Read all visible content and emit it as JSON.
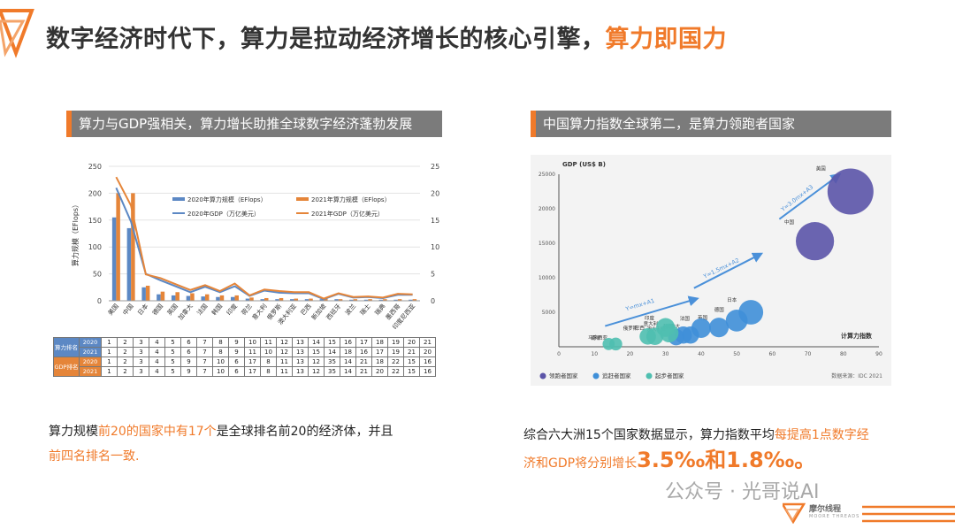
{
  "title": {
    "main": "数字经济时代下，算力是拉动经济增长的核心引擎，",
    "highlight": "算力即国力"
  },
  "left": {
    "heading": "算力与GDP强相关，算力增长助推全球数字经济蓬勃发展",
    "table": {
      "groups": [
        {
          "label": "算力排名",
          "rows": [
            {
              "year": "2020",
              "values": [
                "1",
                "2",
                "3",
                "4",
                "5",
                "6",
                "7",
                "8",
                "9",
                "10",
                "11",
                "12",
                "13",
                "14",
                "15",
                "16",
                "17",
                "18",
                "19",
                "20",
                "21"
              ]
            },
            {
              "year": "2021",
              "values": [
                "1",
                "2",
                "3",
                "4",
                "5",
                "6",
                "7",
                "8",
                "9",
                "11",
                "10",
                "12",
                "13",
                "15",
                "14",
                "18",
                "16",
                "17",
                "19",
                "21",
                "20"
              ]
            }
          ]
        },
        {
          "label": "GDP排名",
          "rows": [
            {
              "year": "2020",
              "values": [
                "1",
                "2",
                "3",
                "4",
                "5",
                "9",
                "7",
                "10",
                "6",
                "17",
                "8",
                "11",
                "13",
                "12",
                "35",
                "14",
                "21",
                "18",
                "22",
                "15",
                "16"
              ]
            },
            {
              "year": "2021",
              "values": [
                "1",
                "2",
                "3",
                "4",
                "5",
                "9",
                "7",
                "10",
                "6",
                "17",
                "8",
                "11",
                "13",
                "12",
                "35",
                "14",
                "21",
                "20",
                "22",
                "15",
                "16"
              ]
            }
          ]
        }
      ]
    },
    "text": {
      "t1": "算力规模",
      "t2": "前20的国家中有17个",
      "t3": "是全球排名前20的经济体，并且",
      "t4": "前四名排名一致."
    }
  },
  "right": {
    "heading": "中国算力指数全球第二，是算力领跑者国家",
    "text": {
      "t1": "综合六大洲15个国家数据显示，算力指数平均",
      "t2": "每提高1点数字经",
      "t3": "济和GDP将分别增长",
      "t4": "3.5‰和1.8‰。"
    }
  },
  "chart_data": [
    {
      "type": "bar",
      "categories": [
        "美国",
        "中国",
        "日本",
        "德国",
        "英国",
        "加拿大",
        "法国",
        "韩国",
        "印度",
        "荷兰",
        "意大利",
        "俄罗斯",
        "澳大利亚",
        "巴西",
        "新加坡",
        "西班牙",
        "波兰",
        "瑞士",
        "瑞典",
        "墨西哥",
        "印度尼西亚"
      ],
      "ylabel": "算力规模（EFlops）",
      "ylim": [
        0,
        250
      ],
      "y2lim": [
        0,
        25
      ],
      "yticks": [
        "0",
        "50",
        "100",
        "150",
        "200",
        "250"
      ],
      "y2ticks": [
        "0",
        "5",
        "10",
        "15",
        "20",
        "25"
      ],
      "series": [
        {
          "name": "2020年算力规模（EFlops）",
          "kind": "bar",
          "axis": "left",
          "color": "#5c88c4",
          "values": [
            155,
            135,
            25,
            12,
            10,
            9,
            8,
            7,
            7,
            4,
            3,
            3,
            3,
            3,
            3,
            3,
            2,
            2,
            2,
            2,
            2
          ]
        },
        {
          "name": "2021年算力规模（EFlops）",
          "kind": "bar",
          "axis": "left",
          "color": "#e58539",
          "values": [
            200,
            200,
            28,
            17,
            16,
            14,
            12,
            10,
            10,
            6,
            5,
            5,
            4,
            4,
            4,
            3,
            3,
            3,
            3,
            3,
            3
          ]
        },
        {
          "name": "2020年GDP（万亿美元）",
          "kind": "line",
          "axis": "right",
          "color": "#5c88c4",
          "values": [
            21,
            14.7,
            5,
            3.8,
            2.7,
            1.6,
            2.6,
            1.6,
            2.7,
            0.9,
            1.9,
            1.5,
            1.4,
            1.4,
            0.3,
            1.3,
            0.6,
            0.7,
            0.5,
            1.1,
            1.1
          ]
        },
        {
          "name": "2021年GDP（万亿美元）",
          "kind": "line",
          "axis": "right",
          "color": "#e58539",
          "values": [
            23,
            17.7,
            4.9,
            4.2,
            3.1,
            2.0,
            2.9,
            1.8,
            3.2,
            1.0,
            2.1,
            1.8,
            1.6,
            1.6,
            0.4,
            1.4,
            0.7,
            0.8,
            0.6,
            1.3,
            1.2
          ]
        }
      ]
    },
    {
      "type": "scatter",
      "xlabel": "计算力指数",
      "ylabel": "GDP (US$ B)",
      "xlim": [
        0,
        90
      ],
      "ylim": [
        0,
        25000
      ],
      "xticks": [
        "0",
        "10",
        "20",
        "30",
        "40",
        "50",
        "60",
        "70",
        "80",
        "90"
      ],
      "yticks": [
        "5000",
        "10000",
        "15000",
        "20000",
        "25000"
      ],
      "trendlines": [
        "Y=mx+A1",
        "Y=1.5mx+A2",
        "Y=3.0mx+A3"
      ],
      "groups": [
        {
          "name": "领跑者国家",
          "color": "#5b54a8"
        },
        {
          "name": "追赶者国家",
          "color": "#3f8fd8"
        },
        {
          "name": "起步者国家",
          "color": "#4fbfb0"
        }
      ],
      "points": [
        {
          "label": "美国",
          "x": 82,
          "y": 22500,
          "group": 0,
          "size": 1.0
        },
        {
          "label": "中国",
          "x": 72,
          "y": 15300,
          "group": 0,
          "size": 0.8
        },
        {
          "label": "日本",
          "x": 54,
          "y": 5000,
          "group": 1,
          "size": 0.45
        },
        {
          "label": "德国",
          "x": 50,
          "y": 3800,
          "group": 1,
          "size": 0.38
        },
        {
          "label": "英国",
          "x": 45,
          "y": 2800,
          "group": 1,
          "size": 0.32
        },
        {
          "label": "法国",
          "x": 40,
          "y": 2700,
          "group": 1,
          "size": 0.32
        },
        {
          "label": "加拿大",
          "x": 37,
          "y": 1700,
          "group": 1,
          "size": 0.26
        },
        {
          "label": "韩国",
          "x": 35,
          "y": 1700,
          "group": 1,
          "size": 0.26
        },
        {
          "label": "澳大利亚",
          "x": 33,
          "y": 1400,
          "group": 1,
          "size": 0.24
        },
        {
          "label": "意大利",
          "x": 31,
          "y": 2000,
          "group": 2,
          "size": 0.3
        },
        {
          "label": "印度",
          "x": 30,
          "y": 2800,
          "group": 2,
          "size": 0.3
        },
        {
          "label": "巴西",
          "x": 27,
          "y": 1500,
          "group": 2,
          "size": 0.26
        },
        {
          "label": "俄罗斯",
          "x": 25,
          "y": 1500,
          "group": 2,
          "size": 0.24
        },
        {
          "label": "马来西亚",
          "x": 16,
          "y": 400,
          "group": 2,
          "size": 0.15
        },
        {
          "label": "南非",
          "x": 14,
          "y": 400,
          "group": 2,
          "size": 0.13
        }
      ],
      "source": "数据来源：IDC 2021"
    }
  ],
  "watermark": "公众号 · 光哥说AI",
  "brand": {
    "name": "摩尔线程",
    "sub": "MOORE THREADS"
  }
}
